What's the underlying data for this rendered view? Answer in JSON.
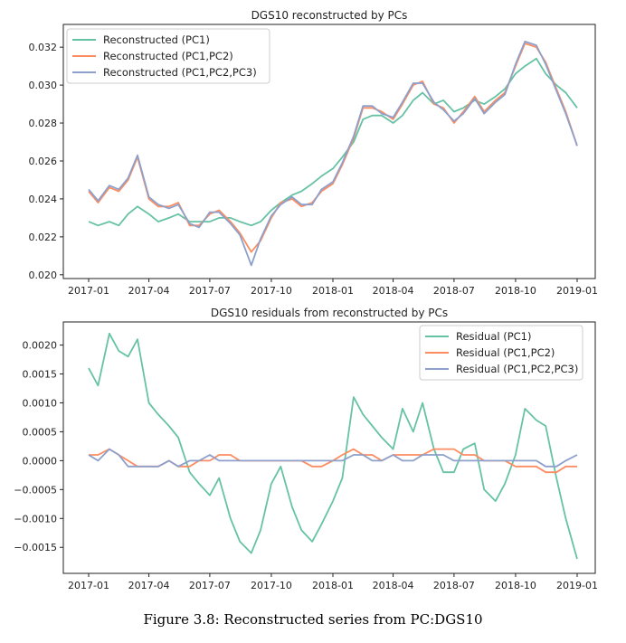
{
  "caption": "Figure 3.8: Reconstructed series from PC:DGS10",
  "colors": {
    "pc1": "#66c2a5",
    "pc12": "#fc8d62",
    "pc123": "#8da0cb"
  },
  "chart_data": [
    {
      "type": "line",
      "title": "DGS10 reconstructed by PCs",
      "xlabel": "",
      "ylabel": "",
      "xlim": [
        "2017-01-01",
        "2019-01-01"
      ],
      "ylim": [
        0.0198,
        0.0332
      ],
      "xticks": [
        "2017-01",
        "2017-04",
        "2017-07",
        "2017-10",
        "2018-01",
        "2018-04",
        "2018-07",
        "2018-10",
        "2019-01"
      ],
      "yticks": [
        "0.020",
        "0.022",
        "0.024",
        "0.026",
        "0.028",
        "0.030",
        "0.032"
      ],
      "yticks_values": [
        0.02,
        0.022,
        0.024,
        0.026,
        0.028,
        0.03,
        0.032
      ],
      "grid": false,
      "legend": "top-left",
      "series": [
        {
          "name": "Reconstructed (PC1)",
          "color": "#66c2a5",
          "x": [
            "2017-01-01",
            "2017-01-15",
            "2017-02-01",
            "2017-02-15",
            "2017-03-01",
            "2017-03-15",
            "2017-04-01",
            "2017-04-15",
            "2017-05-01",
            "2017-05-15",
            "2017-06-01",
            "2017-06-15",
            "2017-07-01",
            "2017-07-15",
            "2017-08-01",
            "2017-08-15",
            "2017-09-01",
            "2017-09-15",
            "2017-10-01",
            "2017-10-15",
            "2017-11-01",
            "2017-11-15",
            "2017-12-01",
            "2017-12-15",
            "2018-01-01",
            "2018-01-15",
            "2018-02-01",
            "2018-02-15",
            "2018-03-01",
            "2018-03-15",
            "2018-04-01",
            "2018-04-15",
            "2018-05-01",
            "2018-05-15",
            "2018-06-01",
            "2018-06-15",
            "2018-07-01",
            "2018-07-15",
            "2018-08-01",
            "2018-08-15",
            "2018-09-01",
            "2018-09-15",
            "2018-10-01",
            "2018-10-15",
            "2018-11-01",
            "2018-11-15",
            "2018-12-01",
            "2018-12-15",
            "2019-01-01"
          ],
          "values": [
            0.0228,
            0.0226,
            0.0228,
            0.0226,
            0.0232,
            0.0236,
            0.0232,
            0.0228,
            0.023,
            0.0232,
            0.0228,
            0.0228,
            0.0228,
            0.023,
            0.023,
            0.0228,
            0.0226,
            0.0228,
            0.0234,
            0.0238,
            0.0242,
            0.0244,
            0.0248,
            0.0252,
            0.0256,
            0.0262,
            0.027,
            0.0282,
            0.0284,
            0.0284,
            0.028,
            0.0284,
            0.0292,
            0.0296,
            0.029,
            0.0292,
            0.0286,
            0.0288,
            0.0292,
            0.029,
            0.0294,
            0.0298,
            0.0306,
            0.031,
            0.0314,
            0.0306,
            0.03,
            0.0296,
            0.0288
          ]
        },
        {
          "name": "Reconstructed (PC1,PC2)",
          "color": "#fc8d62",
          "x": [
            "2017-01-01",
            "2017-01-15",
            "2017-02-01",
            "2017-02-15",
            "2017-03-01",
            "2017-03-15",
            "2017-04-01",
            "2017-04-15",
            "2017-05-01",
            "2017-05-15",
            "2017-06-01",
            "2017-06-15",
            "2017-07-01",
            "2017-07-15",
            "2017-08-01",
            "2017-08-15",
            "2017-09-01",
            "2017-09-15",
            "2017-10-01",
            "2017-10-15",
            "2017-11-01",
            "2017-11-15",
            "2017-12-01",
            "2017-12-15",
            "2018-01-01",
            "2018-01-15",
            "2018-02-01",
            "2018-02-15",
            "2018-03-01",
            "2018-03-15",
            "2018-04-01",
            "2018-04-15",
            "2018-05-01",
            "2018-05-15",
            "2018-06-01",
            "2018-06-15",
            "2018-07-01",
            "2018-07-15",
            "2018-08-01",
            "2018-08-15",
            "2018-09-01",
            "2018-09-15",
            "2018-10-01",
            "2018-10-15",
            "2018-11-01",
            "2018-11-15",
            "2018-12-01",
            "2018-12-15",
            "2019-01-01"
          ],
          "values": [
            0.0244,
            0.0238,
            0.0246,
            0.0244,
            0.025,
            0.0262,
            0.024,
            0.0236,
            0.0236,
            0.0238,
            0.0226,
            0.0226,
            0.0232,
            0.0234,
            0.0228,
            0.0222,
            0.0212,
            0.0218,
            0.023,
            0.0238,
            0.024,
            0.0236,
            0.0238,
            0.0244,
            0.0248,
            0.0258,
            0.0272,
            0.0288,
            0.0288,
            0.0286,
            0.0282,
            0.029,
            0.03,
            0.0302,
            0.029,
            0.0288,
            0.028,
            0.0286,
            0.0294,
            0.0286,
            0.0292,
            0.0296,
            0.031,
            0.0322,
            0.032,
            0.0312,
            0.0298,
            0.0286,
            0.0268
          ]
        },
        {
          "name": "Reconstructed (PC1,PC2,PC3)",
          "color": "#8da0cb",
          "x": [
            "2017-01-01",
            "2017-01-15",
            "2017-02-01",
            "2017-02-15",
            "2017-03-01",
            "2017-03-15",
            "2017-04-01",
            "2017-04-15",
            "2017-05-01",
            "2017-05-15",
            "2017-06-01",
            "2017-06-15",
            "2017-07-01",
            "2017-07-15",
            "2017-08-01",
            "2017-08-15",
            "2017-09-01",
            "2017-09-15",
            "2017-10-01",
            "2017-10-15",
            "2017-11-01",
            "2017-11-15",
            "2017-12-01",
            "2017-12-15",
            "2018-01-01",
            "2018-01-15",
            "2018-02-01",
            "2018-02-15",
            "2018-03-01",
            "2018-03-15",
            "2018-04-01",
            "2018-04-15",
            "2018-05-01",
            "2018-05-15",
            "2018-06-01",
            "2018-06-15",
            "2018-07-01",
            "2018-07-15",
            "2018-08-01",
            "2018-08-15",
            "2018-09-01",
            "2018-09-15",
            "2018-10-01",
            "2018-10-15",
            "2018-11-01",
            "2018-11-15",
            "2018-12-01",
            "2018-12-15",
            "2019-01-01"
          ],
          "values": [
            0.0245,
            0.0239,
            0.0247,
            0.0245,
            0.0251,
            0.0263,
            0.0241,
            0.0237,
            0.0235,
            0.0237,
            0.0227,
            0.0225,
            0.0233,
            0.0233,
            0.0227,
            0.0221,
            0.0205,
            0.0219,
            0.0231,
            0.0237,
            0.0241,
            0.0237,
            0.0237,
            0.0245,
            0.0249,
            0.0259,
            0.0273,
            0.0289,
            0.0289,
            0.0285,
            0.0283,
            0.0291,
            0.0301,
            0.0301,
            0.0291,
            0.0287,
            0.0281,
            0.0285,
            0.0293,
            0.0285,
            0.0291,
            0.0295,
            0.0311,
            0.0323,
            0.0321,
            0.0311,
            0.0297,
            0.0285,
            0.0268
          ]
        }
      ]
    },
    {
      "type": "line",
      "title": "DGS10 residuals from reconstructed by PCs",
      "xlabel": "",
      "ylabel": "",
      "xlim": [
        "2017-01-01",
        "2019-01-01"
      ],
      "ylim": [
        -0.00195,
        0.0024
      ],
      "xticks": [
        "2017-01",
        "2017-04",
        "2017-07",
        "2017-10",
        "2018-01",
        "2018-04",
        "2018-07",
        "2018-10",
        "2019-01"
      ],
      "yticks": [
        "−0.0015",
        "−0.0010",
        "−0.0005",
        "0.0000",
        "0.0005",
        "0.0010",
        "0.0015",
        "0.0020"
      ],
      "yticks_values": [
        -0.0015,
        -0.001,
        -0.0005,
        0.0,
        0.0005,
        0.001,
        0.0015,
        0.002
      ],
      "grid": false,
      "legend": "top-right",
      "series": [
        {
          "name": "Residual (PC1)",
          "color": "#66c2a5",
          "x": [
            "2017-01-01",
            "2017-01-15",
            "2017-02-01",
            "2017-02-15",
            "2017-03-01",
            "2017-03-15",
            "2017-04-01",
            "2017-04-15",
            "2017-05-01",
            "2017-05-15",
            "2017-06-01",
            "2017-06-15",
            "2017-07-01",
            "2017-07-15",
            "2017-08-01",
            "2017-08-15",
            "2017-09-01",
            "2017-09-15",
            "2017-10-01",
            "2017-10-15",
            "2017-11-01",
            "2017-11-15",
            "2017-12-01",
            "2017-12-15",
            "2018-01-01",
            "2018-01-15",
            "2018-02-01",
            "2018-02-15",
            "2018-03-01",
            "2018-03-15",
            "2018-04-01",
            "2018-04-15",
            "2018-05-01",
            "2018-05-15",
            "2018-06-01",
            "2018-06-15",
            "2018-07-01",
            "2018-07-15",
            "2018-08-01",
            "2018-08-15",
            "2018-09-01",
            "2018-09-15",
            "2018-10-01",
            "2018-10-15",
            "2018-11-01",
            "2018-11-15",
            "2018-12-01",
            "2018-12-15",
            "2019-01-01"
          ],
          "values": [
            0.0016,
            0.0013,
            0.0022,
            0.0019,
            0.0018,
            0.0021,
            0.001,
            0.0008,
            0.0006,
            0.0004,
            -0.0002,
            -0.0004,
            -0.0006,
            -0.0003,
            -0.001,
            -0.0014,
            -0.0016,
            -0.0012,
            -0.0004,
            -0.0001,
            -0.0008,
            -0.0012,
            -0.0014,
            -0.0011,
            -0.0007,
            -0.0003,
            0.0011,
            0.0008,
            0.0006,
            0.0004,
            0.0002,
            0.0009,
            0.0005,
            0.001,
            0.0002,
            -0.0002,
            -0.0002,
            0.0002,
            0.0003,
            -0.0005,
            -0.0007,
            -0.0004,
            0.0001,
            0.0009,
            0.0007,
            0.0006,
            -0.0003,
            -0.001,
            -0.0017
          ]
        },
        {
          "name": "Residual (PC1,PC2)",
          "color": "#fc8d62",
          "x": [
            "2017-01-01",
            "2017-01-15",
            "2017-02-01",
            "2017-02-15",
            "2017-03-01",
            "2017-03-15",
            "2017-04-01",
            "2017-04-15",
            "2017-05-01",
            "2017-05-15",
            "2017-06-01",
            "2017-06-15",
            "2017-07-01",
            "2017-07-15",
            "2017-08-01",
            "2017-08-15",
            "2017-09-01",
            "2017-09-15",
            "2017-10-01",
            "2017-10-15",
            "2017-11-01",
            "2017-11-15",
            "2017-12-01",
            "2017-12-15",
            "2018-01-01",
            "2018-01-15",
            "2018-02-01",
            "2018-02-15",
            "2018-03-01",
            "2018-03-15",
            "2018-04-01",
            "2018-04-15",
            "2018-05-01",
            "2018-05-15",
            "2018-06-01",
            "2018-06-15",
            "2018-07-01",
            "2018-07-15",
            "2018-08-01",
            "2018-08-15",
            "2018-09-01",
            "2018-09-15",
            "2018-10-01",
            "2018-10-15",
            "2018-11-01",
            "2018-11-15",
            "2018-12-01",
            "2018-12-15",
            "2019-01-01"
          ],
          "values": [
            0.0001,
            0.0001,
            0.0002,
            0.0001,
            0.0,
            -0.0001,
            -0.0001,
            -0.0001,
            0.0,
            -0.0001,
            -0.0001,
            0.0,
            0.0,
            0.0001,
            0.0001,
            0.0,
            0.0,
            0.0,
            0.0,
            0.0,
            0.0,
            0.0,
            -0.0001,
            -0.0001,
            0.0,
            0.0001,
            0.0002,
            0.0001,
            0.0001,
            0.0,
            0.0001,
            0.0001,
            0.0001,
            0.0001,
            0.0002,
            0.0002,
            0.0002,
            0.0001,
            0.0001,
            0.0,
            0.0,
            0.0,
            -0.0001,
            -0.0001,
            -0.0001,
            -0.0002,
            -0.0002,
            -0.0001,
            -0.0001
          ]
        },
        {
          "name": "Residual (PC1,PC2,PC3)",
          "color": "#8da0cb",
          "x": [
            "2017-01-01",
            "2017-01-15",
            "2017-02-01",
            "2017-02-15",
            "2017-03-01",
            "2017-03-15",
            "2017-04-01",
            "2017-04-15",
            "2017-05-01",
            "2017-05-15",
            "2017-06-01",
            "2017-06-15",
            "2017-07-01",
            "2017-07-15",
            "2017-08-01",
            "2017-08-15",
            "2017-09-01",
            "2017-09-15",
            "2017-10-01",
            "2017-10-15",
            "2017-11-01",
            "2017-11-15",
            "2017-12-01",
            "2017-12-15",
            "2018-01-01",
            "2018-01-15",
            "2018-02-01",
            "2018-02-15",
            "2018-03-01",
            "2018-03-15",
            "2018-04-01",
            "2018-04-15",
            "2018-05-01",
            "2018-05-15",
            "2018-06-01",
            "2018-06-15",
            "2018-07-01",
            "2018-07-15",
            "2018-08-01",
            "2018-08-15",
            "2018-09-01",
            "2018-09-15",
            "2018-10-01",
            "2018-10-15",
            "2018-11-01",
            "2018-11-15",
            "2018-12-01",
            "2018-12-15",
            "2019-01-01"
          ],
          "values": [
            0.0001,
            0.0,
            0.0002,
            0.0001,
            -0.0001,
            -0.0001,
            -0.0001,
            -0.0001,
            0.0,
            -0.0001,
            0.0,
            0.0,
            0.0001,
            0.0,
            0.0,
            0.0,
            0.0,
            0.0,
            0.0,
            0.0,
            0.0,
            0.0,
            0.0,
            0.0,
            0.0,
            0.0,
            0.0001,
            0.0001,
            0.0,
            0.0,
            0.0001,
            0.0,
            0.0,
            0.0001,
            0.0001,
            0.0001,
            0.0,
            0.0,
            0.0,
            0.0,
            0.0,
            0.0,
            0.0,
            0.0,
            0.0,
            -0.0001,
            -0.0001,
            0.0,
            0.0001
          ]
        }
      ]
    }
  ]
}
